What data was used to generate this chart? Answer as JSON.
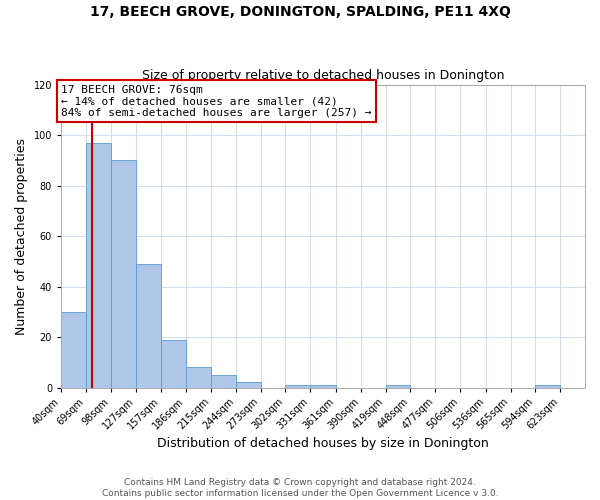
{
  "title": "17, BEECH GROVE, DONINGTON, SPALDING, PE11 4XQ",
  "subtitle": "Size of property relative to detached houses in Donington",
  "xlabel": "Distribution of detached houses by size in Donington",
  "ylabel": "Number of detached properties",
  "bin_labels": [
    "40sqm",
    "69sqm",
    "98sqm",
    "127sqm",
    "157sqm",
    "186sqm",
    "215sqm",
    "244sqm",
    "273sqm",
    "302sqm",
    "331sqm",
    "361sqm",
    "390sqm",
    "419sqm",
    "448sqm",
    "477sqm",
    "506sqm",
    "536sqm",
    "565sqm",
    "594sqm",
    "623sqm"
  ],
  "bar_values": [
    30,
    97,
    90,
    49,
    19,
    8,
    5,
    2,
    0,
    1,
    1,
    0,
    0,
    1,
    0,
    0,
    0,
    0,
    0,
    1,
    0
  ],
  "bar_color": "#aec6e8",
  "bar_edge_color": "#5b9bd5",
  "ylim": [
    0,
    120
  ],
  "yticks": [
    0,
    20,
    40,
    60,
    80,
    100,
    120
  ],
  "property_line_x": 76,
  "bin_edges": [
    40,
    69,
    98,
    127,
    157,
    186,
    215,
    244,
    273,
    302,
    331,
    361,
    390,
    419,
    448,
    477,
    506,
    536,
    565,
    594,
    623,
    652
  ],
  "annotation_title": "17 BEECH GROVE: 76sqm",
  "annotation_line1": "← 14% of detached houses are smaller (42)",
  "annotation_line2": "84% of semi-detached houses are larger (257) →",
  "annotation_box_color": "#ffffff",
  "annotation_box_edge": "#cc0000",
  "red_line_color": "#cc0000",
  "footer1": "Contains HM Land Registry data © Crown copyright and database right 2024.",
  "footer2": "Contains public sector information licensed under the Open Government Licence v 3.0.",
  "title_fontsize": 10,
  "subtitle_fontsize": 9,
  "axis_label_fontsize": 9,
  "tick_fontsize": 7,
  "annotation_fontsize": 8,
  "footer_fontsize": 6.5
}
